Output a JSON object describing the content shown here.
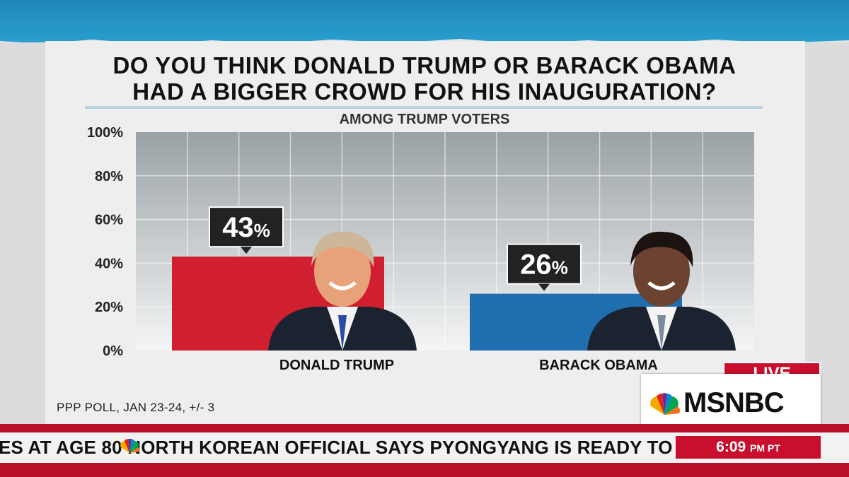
{
  "title_line1": "DO YOU THINK DONALD TRUMP OR BARACK OBAMA",
  "title_line2": "HAD A BIGGER CROWD FOR HIS INAUGURATION?",
  "subtitle": "AMONG TRUMP VOTERS",
  "source": "PPP POLL, JAN 23-24, +/- 3",
  "chart_data": {
    "type": "bar",
    "categories": [
      "DONALD TRUMP",
      "BARACK OBAMA"
    ],
    "values": [
      43,
      26
    ],
    "data_labels": [
      "43%",
      "26%"
    ],
    "ytick_labels": [
      "0%",
      "20%",
      "40%",
      "60%",
      "80%",
      "100%"
    ],
    "ylim": [
      0,
      100
    ],
    "grid": true,
    "colors": [
      "#d0202f",
      "#1f6fb0"
    ]
  },
  "branding": {
    "live_label": "LIVE",
    "network": "MSNBC"
  },
  "ticker": {
    "headline": "ES AT AGE 80      NORTH KOREAN OFFICIAL SAYS PYONGYANG IS READY TO",
    "time": "6:09",
    "time_zone": "PM PT"
  }
}
